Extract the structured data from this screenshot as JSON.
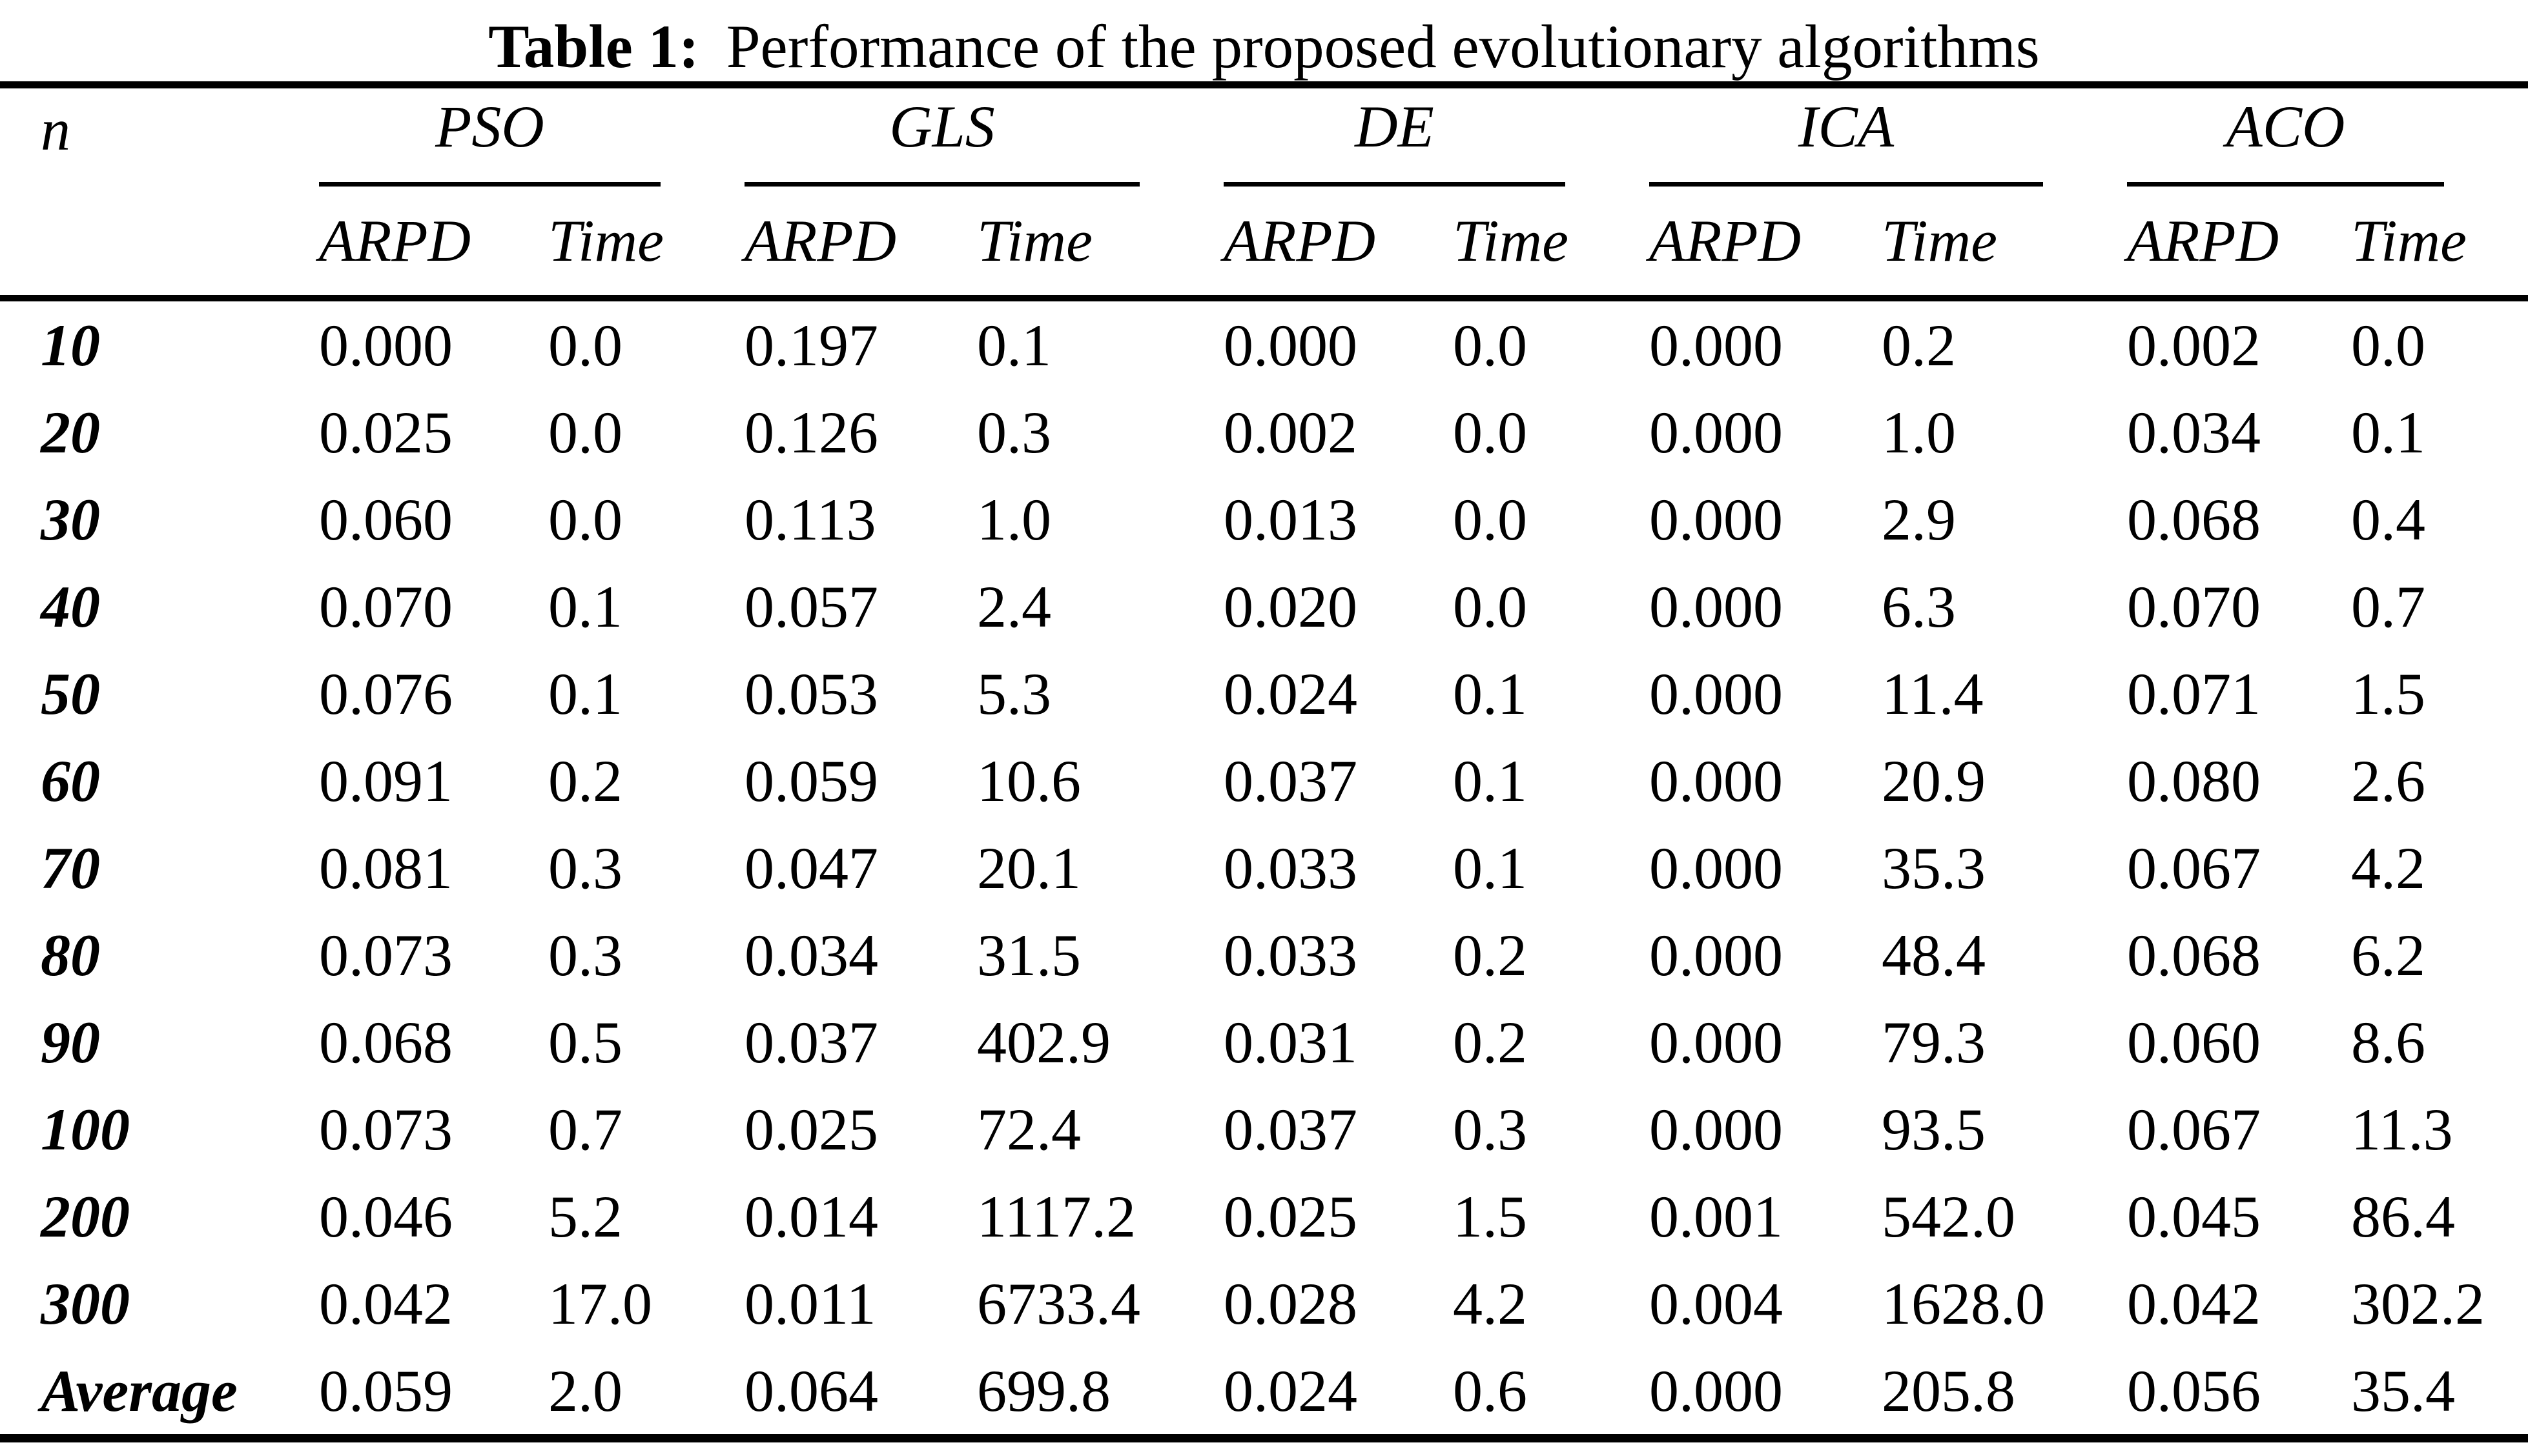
{
  "title": {
    "label": "Table 1:",
    "caption": "Performance of the proposed evolutionary algorithms"
  },
  "columns": {
    "row_key": "n",
    "groups": [
      "PSO",
      "GLS",
      "DE",
      "ICA",
      "ACO"
    ],
    "sub_headers": [
      "ARPD",
      "Time"
    ]
  },
  "rows": [
    {
      "n": "10",
      "values": [
        "0.000",
        "0.0",
        "0.197",
        "0.1",
        "0.000",
        "0.0",
        "0.000",
        "0.2",
        "0.002",
        "0.0"
      ]
    },
    {
      "n": "20",
      "values": [
        "0.025",
        "0.0",
        "0.126",
        "0.3",
        "0.002",
        "0.0",
        "0.000",
        "1.0",
        "0.034",
        "0.1"
      ]
    },
    {
      "n": "30",
      "values": [
        "0.060",
        "0.0",
        "0.113",
        "1.0",
        "0.013",
        "0.0",
        "0.000",
        "2.9",
        "0.068",
        "0.4"
      ]
    },
    {
      "n": "40",
      "values": [
        "0.070",
        "0.1",
        "0.057",
        "2.4",
        "0.020",
        "0.0",
        "0.000",
        "6.3",
        "0.070",
        "0.7"
      ]
    },
    {
      "n": "50",
      "values": [
        "0.076",
        "0.1",
        "0.053",
        "5.3",
        "0.024",
        "0.1",
        "0.000",
        "11.4",
        "0.071",
        "1.5"
      ]
    },
    {
      "n": "60",
      "values": [
        "0.091",
        "0.2",
        "0.059",
        "10.6",
        "0.037",
        "0.1",
        "0.000",
        "20.9",
        "0.080",
        "2.6"
      ]
    },
    {
      "n": "70",
      "values": [
        "0.081",
        "0.3",
        "0.047",
        "20.1",
        "0.033",
        "0.1",
        "0.000",
        "35.3",
        "0.067",
        "4.2"
      ]
    },
    {
      "n": "80",
      "values": [
        "0.073",
        "0.3",
        "0.034",
        "31.5",
        "0.033",
        "0.2",
        "0.000",
        "48.4",
        "0.068",
        "6.2"
      ]
    },
    {
      "n": "90",
      "values": [
        "0.068",
        "0.5",
        "0.037",
        "402.9",
        "0.031",
        "0.2",
        "0.000",
        "79.3",
        "0.060",
        "8.6"
      ]
    },
    {
      "n": "100",
      "values": [
        "0.073",
        "0.7",
        "0.025",
        "72.4",
        "0.037",
        "0.3",
        "0.000",
        "93.5",
        "0.067",
        "11.3"
      ]
    },
    {
      "n": "200",
      "values": [
        "0.046",
        "5.2",
        "0.014",
        "1117.2",
        "0.025",
        "1.5",
        "0.001",
        "542.0",
        "0.045",
        "86.4"
      ]
    },
    {
      "n": "300",
      "values": [
        "0.042",
        "17.0",
        "0.011",
        "6733.4",
        "0.028",
        "4.2",
        "0.004",
        "1628.0",
        "0.042",
        "302.2"
      ]
    },
    {
      "n": "Average",
      "values": [
        "0.059",
        "2.0",
        "0.064",
        "699.8",
        "0.024",
        "0.6",
        "0.000",
        "205.8",
        "0.056",
        "35.4"
      ]
    }
  ]
}
